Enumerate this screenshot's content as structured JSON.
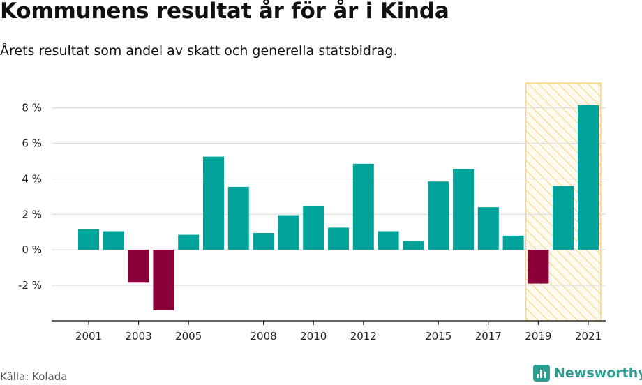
{
  "title": "Kommunens resultat år för år i Kinda",
  "subtitle": "Årets resultat som andel av skatt och generella statsbidrag.",
  "source": "Källa: Kolada",
  "logo": {
    "text": "Newsworthy",
    "icon": "bar-chart-logo-icon",
    "color": "#2e9d92"
  },
  "colors": {
    "positive": "#00a39a",
    "negative": "#8b0038",
    "highlight_fill": "#fbeec5",
    "highlight_stroke": "#f6d57e",
    "grid": "#dddddd",
    "axis": "#333333"
  },
  "chart_data": {
    "type": "bar",
    "categories": [
      "2001",
      "2002",
      "2003",
      "2004",
      "2005",
      "2006",
      "2007",
      "2008",
      "2009",
      "2010",
      "2011",
      "2012",
      "2013",
      "2014",
      "2015",
      "2016",
      "2017",
      "2018",
      "2019",
      "2020",
      "2021"
    ],
    "values": [
      1.15,
      1.05,
      -1.85,
      -3.4,
      0.85,
      5.25,
      3.55,
      0.95,
      1.95,
      2.45,
      1.25,
      4.85,
      1.05,
      0.5,
      3.85,
      4.55,
      2.4,
      0.8,
      -1.9,
      3.6,
      8.15
    ],
    "x_tick_labels": [
      "2001",
      "2003",
      "2005",
      "2008",
      "2010",
      "2012",
      "2015",
      "2017",
      "2019",
      "2021"
    ],
    "y_ticks": [
      -2,
      0,
      2,
      4,
      6,
      8
    ],
    "y_tick_labels": [
      "-2 %",
      "0 %",
      "2 %",
      "4 %",
      "6 %",
      "8 %"
    ],
    "ylim": [
      -4,
      9.4
    ],
    "highlight_range": [
      "2019",
      "2021"
    ],
    "grid": true,
    "xlabel": "",
    "ylabel": ""
  }
}
